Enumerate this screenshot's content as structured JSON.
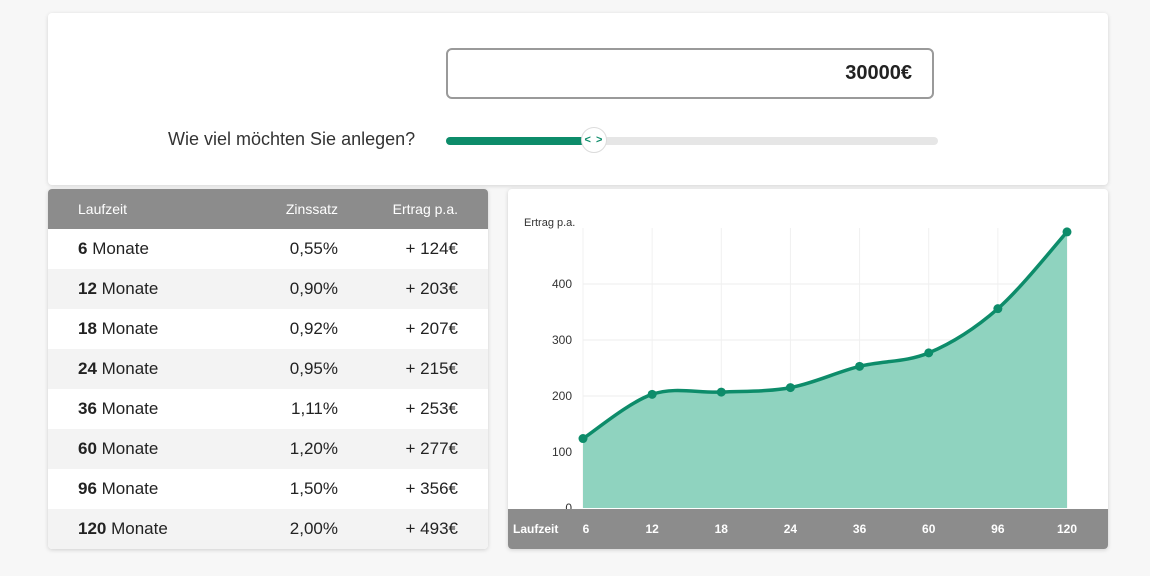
{
  "input": {
    "amount_value": "30000",
    "currency_symbol": "€",
    "question": "Wie viel möchten Sie anlegen?",
    "slider_fraction": 0.3,
    "handle_glyph": "< >"
  },
  "table": {
    "headers": {
      "term": "Laufzeit",
      "rate": "Zinssatz",
      "yield": "Ertrag p.a."
    },
    "unit": "Monate",
    "rows": [
      {
        "months": "6",
        "rate": "0,55%",
        "yield": "+ 124€"
      },
      {
        "months": "12",
        "rate": "0,90%",
        "yield": "+ 203€"
      },
      {
        "months": "18",
        "rate": "0,92%",
        "yield": "+ 207€"
      },
      {
        "months": "24",
        "rate": "0,95%",
        "yield": "+ 215€"
      },
      {
        "months": "36",
        "rate": "1,11%",
        "yield": "+ 253€"
      },
      {
        "months": "60",
        "rate": "1,20%",
        "yield": "+ 277€"
      },
      {
        "months": "96",
        "rate": "1,50%",
        "yield": "+ 356€"
      },
      {
        "months": "120",
        "rate": "2,00%",
        "yield": "+ 493€"
      }
    ]
  },
  "colors": {
    "accent": "#0d8c6a",
    "area_fill": "#8fd3bf",
    "header_bg": "#8c8c8c"
  },
  "chart_data": {
    "type": "area",
    "categories": [
      "6",
      "12",
      "18",
      "24",
      "36",
      "60",
      "96",
      "120"
    ],
    "values": [
      124,
      203,
      207,
      215,
      253,
      277,
      356,
      493
    ],
    "title": "",
    "xlabel": "Laufzeit",
    "ylabel": "Ertrag p.a.",
    "ylim": [
      0,
      500
    ],
    "yticks": [
      0,
      100,
      200,
      300,
      400
    ],
    "grid": true,
    "legend": "none"
  }
}
